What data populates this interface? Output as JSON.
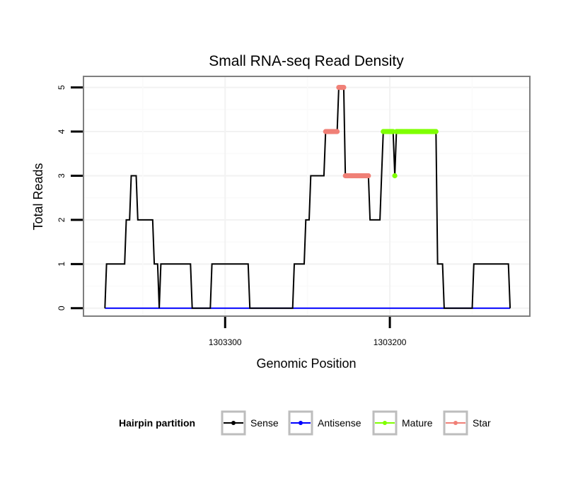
{
  "chart_data": {
    "type": "line",
    "title": "Small RNA-seq Read Density",
    "xlabel": "Genomic Position",
    "ylabel": "Total Reads",
    "x_reversed": true,
    "xlim": [
      1303386,
      1303115
    ],
    "ylim": [
      -0.18,
      5.25
    ],
    "x_ticks": [
      1303300,
      1303200
    ],
    "x_tick_labels": [
      "1303300",
      "1303200"
    ],
    "y_ticks": [
      0,
      1,
      2,
      3,
      4,
      5
    ],
    "y_tick_labels": [
      "0",
      "1",
      "2",
      "3",
      "4",
      "5"
    ],
    "grid": true,
    "legend": {
      "title": "Hairpin partition",
      "position": "bottom",
      "entries": [
        "Sense",
        "Antisense",
        "Mature",
        "Star"
      ]
    },
    "colors": {
      "Sense": "#000000",
      "Antisense": "#0000ff",
      "Mature": "#7fff00",
      "Star": "#f08077"
    },
    "series": [
      {
        "name": "Sense",
        "style": "line",
        "points": [
          [
            1303373,
            0
          ],
          [
            1303372,
            1
          ],
          [
            1303361,
            1
          ],
          [
            1303360,
            2
          ],
          [
            1303358,
            2
          ],
          [
            1303357,
            3
          ],
          [
            1303354,
            3
          ],
          [
            1303353,
            2
          ],
          [
            1303344,
            2
          ],
          [
            1303343,
            1
          ],
          [
            1303341,
            1
          ],
          [
            1303340,
            0
          ],
          [
            1303339,
            1
          ],
          [
            1303321,
            1
          ],
          [
            1303320,
            0
          ],
          [
            1303309,
            0
          ],
          [
            1303308,
            1
          ],
          [
            1303286,
            1
          ],
          [
            1303285,
            0
          ],
          [
            1303259,
            0
          ],
          [
            1303258,
            1
          ],
          [
            1303252,
            1
          ],
          [
            1303251,
            2
          ],
          [
            1303249,
            2
          ],
          [
            1303248,
            3
          ],
          [
            1303240,
            3
          ],
          [
            1303239,
            4
          ],
          [
            1303232,
            4
          ],
          [
            1303231,
            5
          ],
          [
            1303228,
            5
          ],
          [
            1303227,
            3
          ],
          [
            1303213,
            3
          ],
          [
            1303212,
            2
          ],
          [
            1303206,
            2
          ],
          [
            1303205,
            3
          ],
          [
            1303204,
            4
          ],
          [
            1303198,
            4
          ],
          [
            1303197,
            3
          ],
          [
            1303196,
            4
          ],
          [
            1303172,
            4
          ],
          [
            1303171,
            1
          ],
          [
            1303168,
            1
          ],
          [
            1303167,
            0
          ],
          [
            1303150,
            0
          ],
          [
            1303149,
            1
          ],
          [
            1303128,
            1
          ],
          [
            1303127,
            0
          ]
        ]
      },
      {
        "name": "Antisense",
        "style": "line",
        "points": [
          [
            1303373,
            0
          ],
          [
            1303127,
            0
          ]
        ]
      },
      {
        "name": "Mature",
        "style": "points",
        "segments": [
          {
            "x_from": 1303204,
            "x_to": 1303198,
            "y": 4
          },
          {
            "x_from": 1303197,
            "x_to": 1303197,
            "y": 3
          },
          {
            "x_from": 1303196,
            "x_to": 1303172,
            "y": 4
          }
        ]
      },
      {
        "name": "Star",
        "style": "points",
        "segments": [
          {
            "x_from": 1303239,
            "x_to": 1303232,
            "y": 4
          },
          {
            "x_from": 1303231,
            "x_to": 1303228,
            "y": 5
          },
          {
            "x_from": 1303227,
            "x_to": 1303213,
            "y": 3
          }
        ]
      }
    ]
  }
}
